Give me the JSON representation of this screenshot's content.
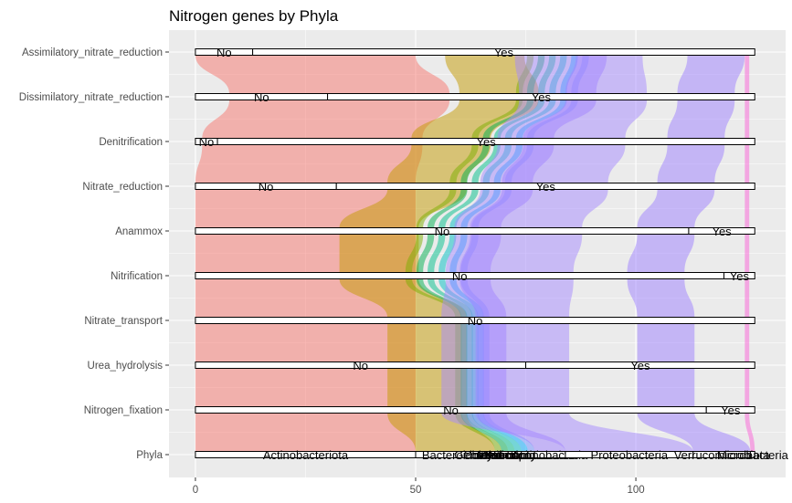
{
  "chart_data": {
    "type": "alluvial",
    "title": "Nitrogen genes by Phyla",
    "xlabel": "",
    "ylabel": "",
    "x_ticks": [
      0,
      50,
      100
    ],
    "xlim": [
      -6,
      134
    ],
    "total": 127,
    "grid": true,
    "axes": [
      "Assimilatory_nitrate_reduction",
      "Dissimilatory_nitrate_reduction",
      "Denitrification",
      "Nitrate_reduction",
      "Anammox",
      "Nitrification",
      "Nitrate_transport",
      "Urea_hydrolysis",
      "Nitrogen_fixation",
      "Phyla"
    ],
    "strata": {
      "Assimilatory_nitrate_reduction": [
        {
          "label": "No",
          "start": 0,
          "end": 13
        },
        {
          "label": "Yes",
          "start": 13,
          "end": 127
        }
      ],
      "Dissimilatory_nitrate_reduction": [
        {
          "label": "No",
          "start": 0,
          "end": 30
        },
        {
          "label": "Yes",
          "start": 30,
          "end": 127
        }
      ],
      "Denitrification": [
        {
          "label": "No",
          "start": 0,
          "end": 5
        },
        {
          "label": "Yes",
          "start": 5,
          "end": 127
        }
      ],
      "Nitrate_reduction": [
        {
          "label": "No",
          "start": 0,
          "end": 32
        },
        {
          "label": "Yes",
          "start": 32,
          "end": 127
        }
      ],
      "Anammox": [
        {
          "label": "No",
          "start": 0,
          "end": 112
        },
        {
          "label": "Yes",
          "start": 112,
          "end": 127
        }
      ],
      "Nitrification": [
        {
          "label": "No",
          "start": 0,
          "end": 120
        },
        {
          "label": "Yes",
          "start": 120,
          "end": 127
        }
      ],
      "Nitrate_transport": [
        {
          "label": "No",
          "start": 0,
          "end": 127
        }
      ],
      "Urea_hydrolysis": [
        {
          "label": "No",
          "start": 0,
          "end": 75
        },
        {
          "label": "Yes",
          "start": 75,
          "end": 127
        }
      ],
      "Nitrogen_fixation": [
        {
          "label": "No",
          "start": 0,
          "end": 116
        },
        {
          "label": "Yes",
          "start": 116,
          "end": 127
        }
      ],
      "Phyla": [
        {
          "label": "Actinobacteriota",
          "start": 0,
          "end": 50
        },
        {
          "label": "Bacteroidota",
          "start": 50,
          "end": 68
        },
        {
          "label": "Chloroflexota",
          "start": 68,
          "end": 69.5
        },
        {
          "label": "Gemmatimonadota",
          "start": 69.5,
          "end": 71
        },
        {
          "label": "Myxococcota",
          "start": 71,
          "end": 72.5
        },
        {
          "label": "Nitrospirota",
          "start": 72.5,
          "end": 74
        },
        {
          "label": "Planctomycetota",
          "start": 74,
          "end": 75.5
        },
        {
          "label": "Pseudomonadota",
          "start": 75.5,
          "end": 77
        },
        {
          "label": "Actinobacteria",
          "start": 77,
          "end": 84
        },
        {
          "label": "Proteobacteria",
          "start": 84,
          "end": 113
        },
        {
          "label": "Verrucomicrobiota",
          "start": 113,
          "end": 126
        },
        {
          "label": "Microbacteria",
          "start": 126,
          "end": 127
        }
      ]
    },
    "visible_stratum_labels": {
      "Phyla": [
        "Actinobacteriota",
        "Bacteroidota",
        "Chloroflexota",
        "Gemmatimonadota",
        "Myxococcota",
        "Nitrospirota",
        "Planctomycetota",
        "Pseudomonadota",
        "Actinobacteria",
        "Proteobacteria",
        "Verrucomicrobiota",
        "Microbacteria"
      ]
    },
    "phyla_colors": {
      "Actinobacteriota": "#F8766D",
      "Bacteroidota": "#C49A00",
      "Chloroflexota": "#7CAE00",
      "Gemmatimonadota": "#00B050",
      "Myxococcota": "#00C08B",
      "Nitrospirota": "#00BFC4",
      "Planctomycetota": "#00A9FF",
      "Pseudomonadota": "#7090FF",
      "Actinobacteria": "#9E7FFF",
      "Proteobacteria": "#A58AFF",
      "Verrucomicrobiota": "#9E7FFF",
      "Microbacteria": "#FB61D7"
    },
    "colors": {
      "panel_bg": "#EBEBEB",
      "grid": "#FFFFFF",
      "stratum_fill": "#FFFFFF",
      "stratum_stroke": "#000000"
    }
  }
}
